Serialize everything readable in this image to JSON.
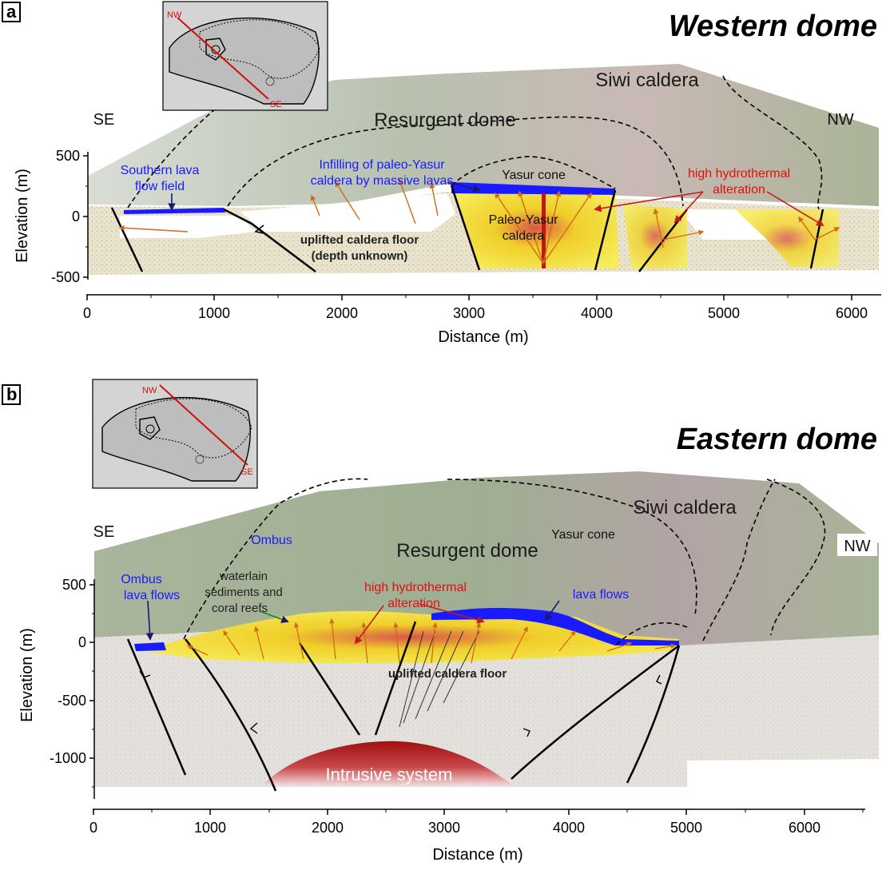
{
  "panel_a": {
    "letter": "a",
    "title": "Western dome",
    "labels": {
      "siwi": "Siwi caldera",
      "se": "SE",
      "nw": "NW",
      "resurgent": "Resurgent dome",
      "southern_1": "Southern lava",
      "southern_2": "flow field",
      "infill_1": "Infilling of paleo-Yasur",
      "infill_2": "caldera by massive lavas",
      "yasur": "Yasur cone",
      "hydro_1": "high hydrothermal",
      "hydro_2": "alteration",
      "paleo_1": "Paleo-Yasur",
      "paleo_2": "caldera",
      "uplift_1": "uplifted caldera floor",
      "uplift_2": "(depth unknown)"
    },
    "inset": {
      "nw": "NW",
      "se": "SE"
    },
    "y_ticks": [
      "500",
      "0",
      "-500"
    ],
    "x_ticks": [
      "0",
      "1000",
      "2000",
      "3000",
      "4000",
      "5000",
      "6000"
    ],
    "xlabel": "Distance (m)",
    "ylabel": "Elevation (m)"
  },
  "panel_b": {
    "letter": "b",
    "title": "Eastern dome",
    "labels": {
      "siwi": "Siwi caldera",
      "yasur": "Yasur cone",
      "se": "SE",
      "nw": "NW",
      "ombus": "Ombus",
      "resurgent": "Resurgent dome",
      "ombus_lava_1": "Ombus",
      "ombus_lava_2": "lava flows",
      "water_1": "waterlain",
      "water_2": "sediments and",
      "water_3": "coral reefs",
      "hydro_1": "high hydrothermal",
      "hydro_2": "alteration",
      "lava": "lava flows",
      "uplift": "uplifted caldera floor",
      "intrusive": "Intrusive system"
    },
    "inset": {
      "nw": "NW",
      "se": "SE"
    },
    "y_ticks": [
      "500",
      "0",
      "-500",
      "-1000"
    ],
    "x_ticks": [
      "0",
      "1000",
      "2000",
      "3000",
      "4000",
      "5000",
      "6000"
    ],
    "xlabel": "Distance (m)",
    "ylabel": "Elevation (m)"
  },
  "colors": {
    "lava": "#1a1aff",
    "hydrothermal": "#e01010",
    "alteration_fill": "#f2e21c",
    "intrusive": "#b01818",
    "arrows": "#d06a1a",
    "terrain": "#a8b49a"
  }
}
